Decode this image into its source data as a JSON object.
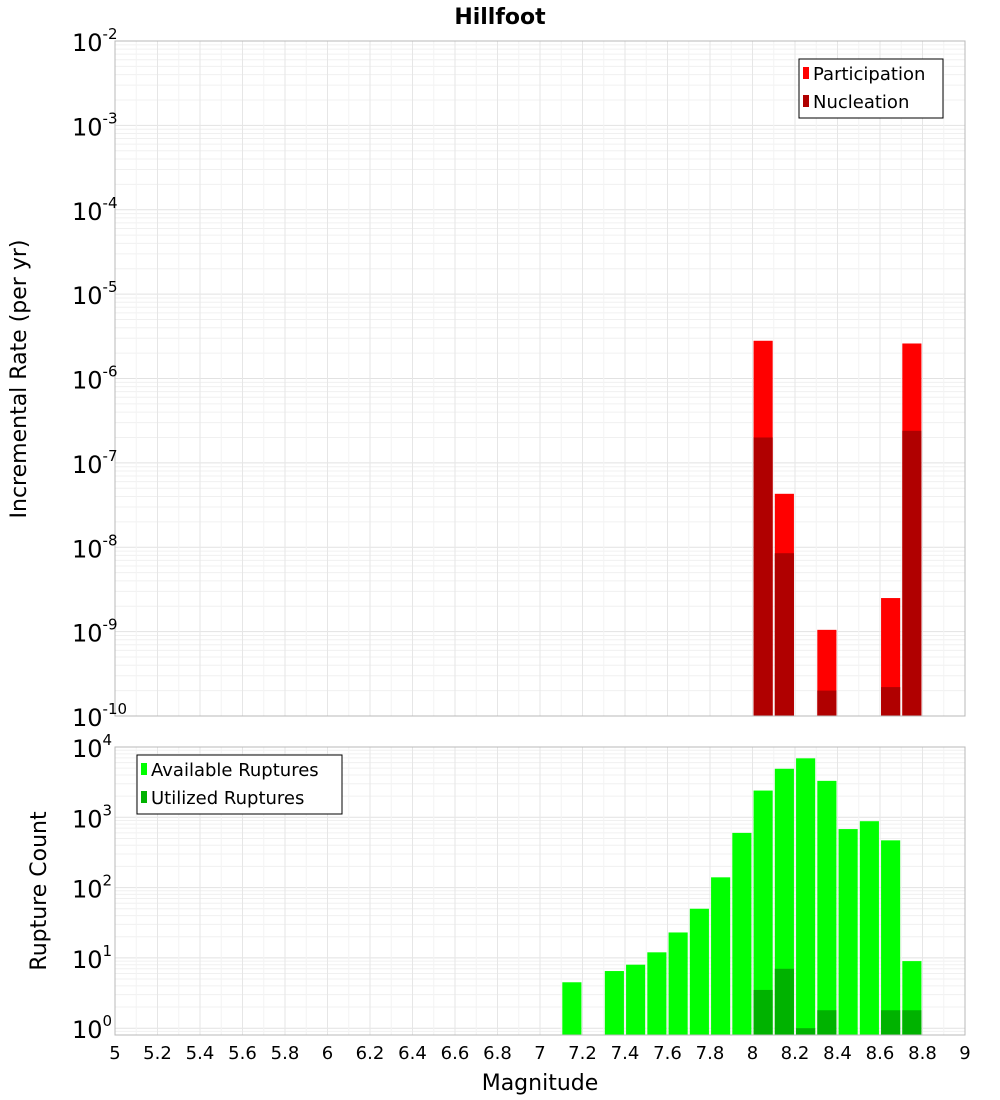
{
  "chart_data": {
    "title": "Hillfoot",
    "xlabel": "Magnitude",
    "xlim": [
      5,
      9
    ],
    "xticks": [
      "5",
      "5.2",
      "5.4",
      "5.6",
      "5.8",
      "6",
      "6.2",
      "6.4",
      "6.6",
      "6.8",
      "7",
      "7.2",
      "7.4",
      "7.6",
      "7.8",
      "8",
      "8.2",
      "8.4",
      "8.6",
      "8.8",
      "9"
    ],
    "panels": [
      {
        "type": "bar",
        "yscale": "log",
        "ylabel": "Incremental Rate (per yr)",
        "ylim": [
          1e-10,
          0.01
        ],
        "yticks": [
          {
            "base": "10",
            "exp": "-2"
          },
          {
            "base": "10",
            "exp": "-3"
          },
          {
            "base": "10",
            "exp": "-4"
          },
          {
            "base": "10",
            "exp": "-5"
          },
          {
            "base": "10",
            "exp": "-6"
          },
          {
            "base": "10",
            "exp": "-7"
          },
          {
            "base": "10",
            "exp": "-8"
          },
          {
            "base": "10",
            "exp": "-9"
          },
          {
            "base": "10",
            "exp": "-10"
          }
        ],
        "legend_position": "top-right",
        "grid": true,
        "series": [
          {
            "name": "Participation",
            "color": "#ff0000",
            "x": [
              8.05,
              8.15,
              8.35,
              8.65,
              8.75
            ],
            "values": [
              2.8e-06,
              4.3e-08,
              1.05e-09,
              2.5e-09,
              2.6e-06
            ]
          },
          {
            "name": "Nucleation",
            "color": "#b00000",
            "x": [
              8.05,
              8.15,
              8.35,
              8.65,
              8.75
            ],
            "values": [
              2e-07,
              8.5e-09,
              2e-10,
              2.2e-10,
              2.4e-07
            ]
          }
        ]
      },
      {
        "type": "bar",
        "yscale": "log",
        "ylabel": "Rupture Count",
        "ylim": [
          0.8,
          10000
        ],
        "yticks": [
          {
            "base": "10",
            "exp": "4"
          },
          {
            "base": "10",
            "exp": "3"
          },
          {
            "base": "10",
            "exp": "2"
          },
          {
            "base": "10",
            "exp": "1"
          },
          {
            "base": "10",
            "exp": "0"
          }
        ],
        "legend_position": "top-left",
        "grid": true,
        "series": [
          {
            "name": "Available Ruptures",
            "color": "#00ff00",
            "x": [
              7.15,
              7.35,
              7.45,
              7.55,
              7.65,
              7.75,
              7.85,
              7.95,
              8.05,
              8.15,
              8.25,
              8.35,
              8.45,
              8.55,
              8.65,
              8.75
            ],
            "values": [
              4.5,
              6.5,
              8,
              12,
              23,
              50,
              140,
              600,
              2400,
              4900,
              6900,
              3300,
              680,
              880,
              470,
              9
            ]
          },
          {
            "name": "Utilized Ruptures",
            "color": "#00b200",
            "x": [
              8.05,
              8.15,
              8.25,
              8.35,
              8.65,
              8.75
            ],
            "values": [
              3.5,
              7,
              1,
              1.8,
              1.8,
              1.8
            ]
          }
        ]
      }
    ]
  }
}
